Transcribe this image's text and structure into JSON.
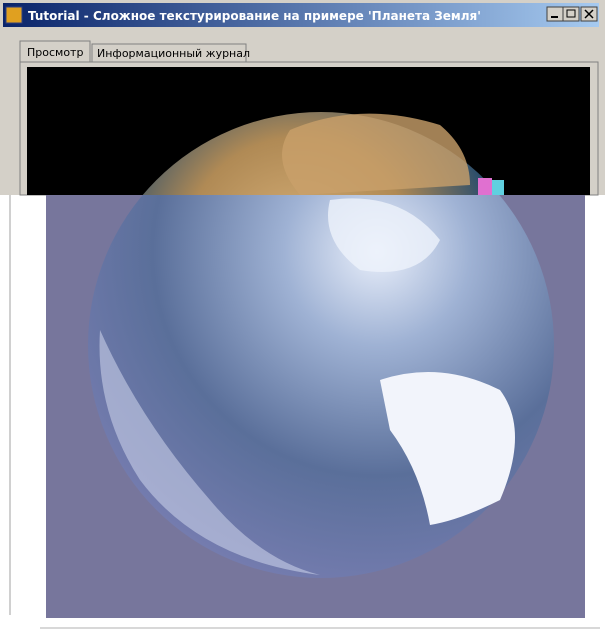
{
  "window": {
    "title": "Tutorial - Сложное текстурирование на примере 'Планета Земля'"
  },
  "tabs": [
    "Просмотр",
    "Информационный журнал"
  ]
}
